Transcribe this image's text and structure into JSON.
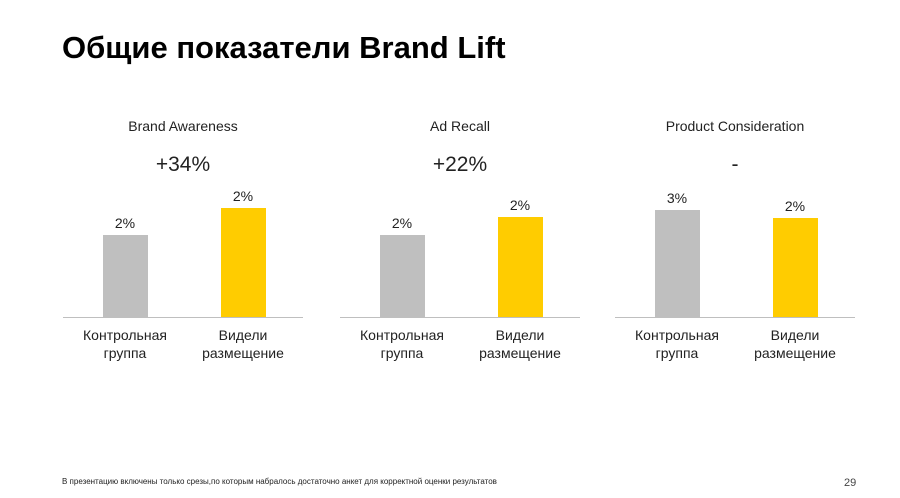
{
  "title": "Общие показатели Brand Lift",
  "footnote": "В презентацию включены только срезы,по которым набралось достаточно анкет для корректной оценки результатов",
  "page_number": "29",
  "colors": {
    "control": "#bfbfbf",
    "exposed": "#ffcc00"
  },
  "chart_data": [
    {
      "type": "bar",
      "title": "Brand Awareness",
      "lift": "+34%",
      "categories": [
        "Контрольная\nгруппа",
        "Видели\nразмещение"
      ],
      "values": [
        1.8,
        2.4
      ],
      "labels": [
        "2%",
        "2%"
      ]
    },
    {
      "type": "bar",
      "title": "Ad Recall",
      "lift": "+22%",
      "categories": [
        "Контрольная\nгруппа",
        "Видели\nразмещение"
      ],
      "values": [
        1.8,
        2.2
      ],
      "labels": [
        "2%",
        "2%"
      ]
    },
    {
      "type": "bar",
      "title": "Product Consideration",
      "lift": "-",
      "categories": [
        "Контрольная\nгруппа",
        "Видели\nразмещение"
      ],
      "values": [
        2.6,
        2.4
      ],
      "labels": [
        "3%",
        "2%"
      ]
    }
  ]
}
